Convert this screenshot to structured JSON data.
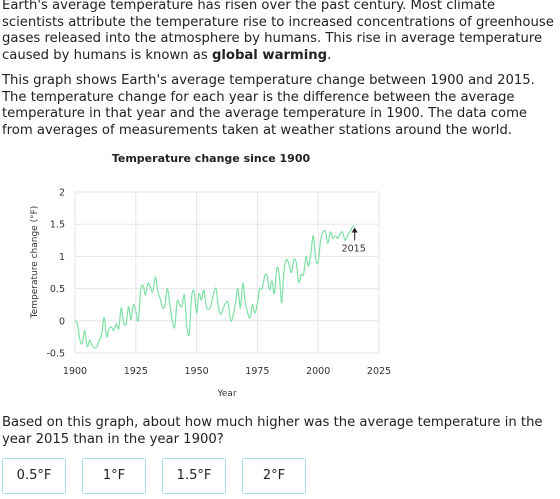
{
  "intro": {
    "paragraph1": "Earth's average temperature has risen over the past century. Most climate scientists attribute the temperature rise to increased concentrations of greenhouse gases released into the atmosphere by humans. This rise in average temperature caused by humans is known as ",
    "term": "global warming",
    "term_end": ".",
    "paragraph2": "This graph shows Earth's average temperature change between 1900 and 2015. The temperature change for each year is the difference between the average temperature in that year and the average temperature in 1900. The data come from averages of measurements taken at weather stations around the world."
  },
  "chart_data": {
    "type": "line",
    "title": "Temperature change since 1900",
    "xlabel": "Year",
    "ylabel": "Temperature change (°F)",
    "xlim": [
      1900,
      2025
    ],
    "ylim": [
      -0.5,
      2
    ],
    "xticks": [
      "1900",
      "1925",
      "1950",
      "1975",
      "2000",
      "2025"
    ],
    "yticks": [
      "-0.5",
      "0",
      "0.5",
      "1",
      "1.5",
      "2"
    ],
    "grid": true,
    "line_color": "#7fe0a6",
    "annotation": {
      "label": "2015",
      "x": 2015,
      "y": 1.48
    },
    "series": [
      {
        "x": [
          1900,
          1901,
          1902,
          1903,
          1904,
          1905,
          1906,
          1907,
          1908,
          1909,
          1910,
          1911,
          1912,
          1913,
          1914,
          1915,
          1916,
          1917,
          1918,
          1919,
          1920,
          1921,
          1922,
          1923,
          1924,
          1925,
          1926,
          1927,
          1928,
          1929,
          1930,
          1931,
          1932,
          1933,
          1934,
          1935,
          1936,
          1937,
          1938,
          1939,
          1940,
          1941,
          1942,
          1943,
          1944,
          1945,
          1946,
          1947,
          1948,
          1949,
          1950,
          1951,
          1952,
          1953,
          1954,
          1955,
          1956,
          1957,
          1958,
          1959,
          1960,
          1961,
          1962,
          1963,
          1964,
          1965,
          1966,
          1967,
          1968,
          1969,
          1970,
          1971,
          1972,
          1973,
          1974,
          1975,
          1976,
          1977,
          1978,
          1979,
          1980,
          1981,
          1982,
          1983,
          1984,
          1985,
          1986,
          1987,
          1988,
          1989,
          1990,
          1991,
          1992,
          1993,
          1994,
          1995,
          1996,
          1997,
          1998,
          1999,
          2000,
          2001,
          2002,
          2003,
          2004,
          2005,
          2006,
          2007,
          2008,
          2009,
          2010,
          2011,
          2012,
          2013,
          2014,
          2015
        ],
        "values": [
          0.0,
          -0.05,
          -0.3,
          -0.35,
          -0.15,
          -0.4,
          -0.3,
          -0.38,
          -0.42,
          -0.4,
          -0.3,
          -0.2,
          0.05,
          -0.25,
          -0.12,
          -0.1,
          -0.15,
          -0.05,
          -0.12,
          0.2,
          -0.02,
          -0.05,
          0.22,
          0.02,
          0.25,
          0.15,
          0.0,
          0.48,
          0.55,
          0.4,
          0.58,
          0.52,
          0.45,
          0.68,
          0.47,
          0.35,
          0.2,
          0.25,
          0.5,
          0.25,
          0.0,
          -0.1,
          0.3,
          0.25,
          0.22,
          0.4,
          -0.1,
          -0.2,
          0.38,
          0.45,
          0.12,
          0.42,
          0.32,
          0.48,
          0.22,
          0.18,
          0.25,
          0.42,
          0.5,
          0.2,
          0.1,
          0.2,
          0.28,
          0.28,
          0.0,
          0.08,
          0.28,
          0.5,
          0.2,
          0.58,
          0.3,
          0.12,
          0.05,
          0.25,
          0.12,
          0.28,
          0.5,
          0.5,
          0.7,
          0.7,
          0.48,
          0.62,
          0.42,
          0.82,
          0.7,
          0.28,
          0.8,
          0.95,
          0.88,
          0.75,
          0.95,
          0.9,
          0.6,
          0.72,
          0.72,
          1.0,
          0.85,
          1.05,
          1.32,
          0.95,
          0.92,
          1.25,
          1.38,
          1.38,
          1.2,
          1.38,
          1.28,
          1.32,
          1.28,
          1.35,
          1.38,
          1.25,
          1.32,
          1.38,
          1.45,
          1.48
        ]
      }
    ]
  },
  "question": "Based on this graph, about how much higher was the average temperature in the year 2015 than in the year 1900?",
  "choices": [
    "0.5°F",
    "1°F",
    "1.5°F",
    "2°F"
  ]
}
